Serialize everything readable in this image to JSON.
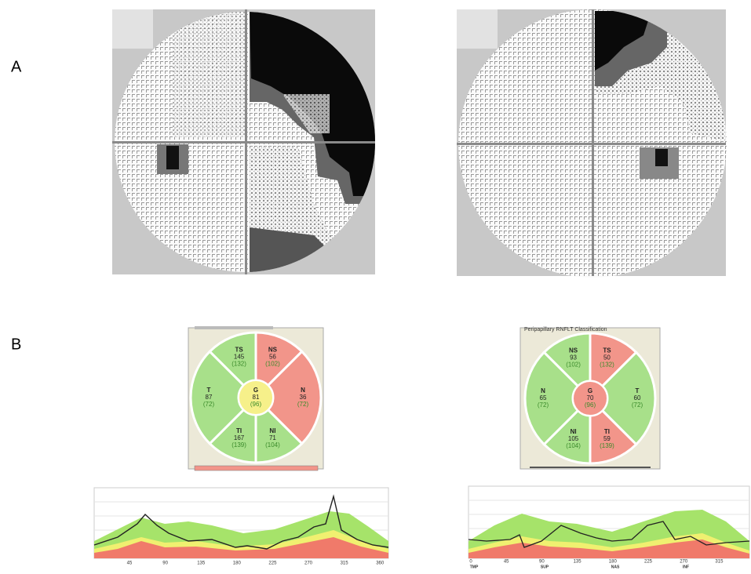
{
  "panels": [
    {
      "label": "A"
    },
    {
      "label": "B"
    }
  ],
  "rnflt": [
    {
      "sectors": [
        {
          "name": "TS",
          "value": "145",
          "reference": "(132)",
          "color": "#a8e08a"
        },
        {
          "name": "NS",
          "value": "56",
          "reference": "(102)",
          "color": "#f2958a"
        },
        {
          "name": "N",
          "value": "36",
          "reference": "(72)",
          "color": "#f2958a"
        },
        {
          "name": "NI",
          "value": "71",
          "reference": "(104)",
          "color": "#a8e08a"
        },
        {
          "name": "TI",
          "value": "167",
          "reference": "(139)",
          "color": "#a8e08a"
        },
        {
          "name": "T",
          "value": "87",
          "reference": "(72)",
          "color": "#a8e08a"
        },
        {
          "name": "G",
          "value": "81",
          "reference": "(96)",
          "color": "#f6f08a"
        }
      ],
      "x_axis_labels": [
        "45",
        "90",
        "135",
        "180",
        "225",
        "270",
        "315",
        "360"
      ]
    },
    {
      "title": "Peripapillary RNFLT Classification",
      "sectors": [
        {
          "name": "NS",
          "value": "93",
          "reference": "(102)",
          "color": "#a8e08a"
        },
        {
          "name": "TS",
          "value": "50",
          "reference": "(132)",
          "color": "#f2958a"
        },
        {
          "name": "T",
          "value": "60",
          "reference": "(72)",
          "color": "#a8e08a"
        },
        {
          "name": "TI",
          "value": "59",
          "reference": "(139)",
          "color": "#f2958a"
        },
        {
          "name": "NI",
          "value": "105",
          "reference": "(104)",
          "color": "#a8e08a"
        },
        {
          "name": "N",
          "value": "65",
          "reference": "(72)",
          "color": "#a8e08a"
        },
        {
          "name": "G",
          "value": "70",
          "reference": "(96)",
          "color": "#f2958a"
        }
      ],
      "x_axis_labels": [
        "0",
        "45",
        "90",
        "135",
        "180",
        "225",
        "270",
        "315"
      ],
      "region_labels": [
        "TMP",
        "SUP",
        "NAS",
        "INF"
      ]
    }
  ]
}
